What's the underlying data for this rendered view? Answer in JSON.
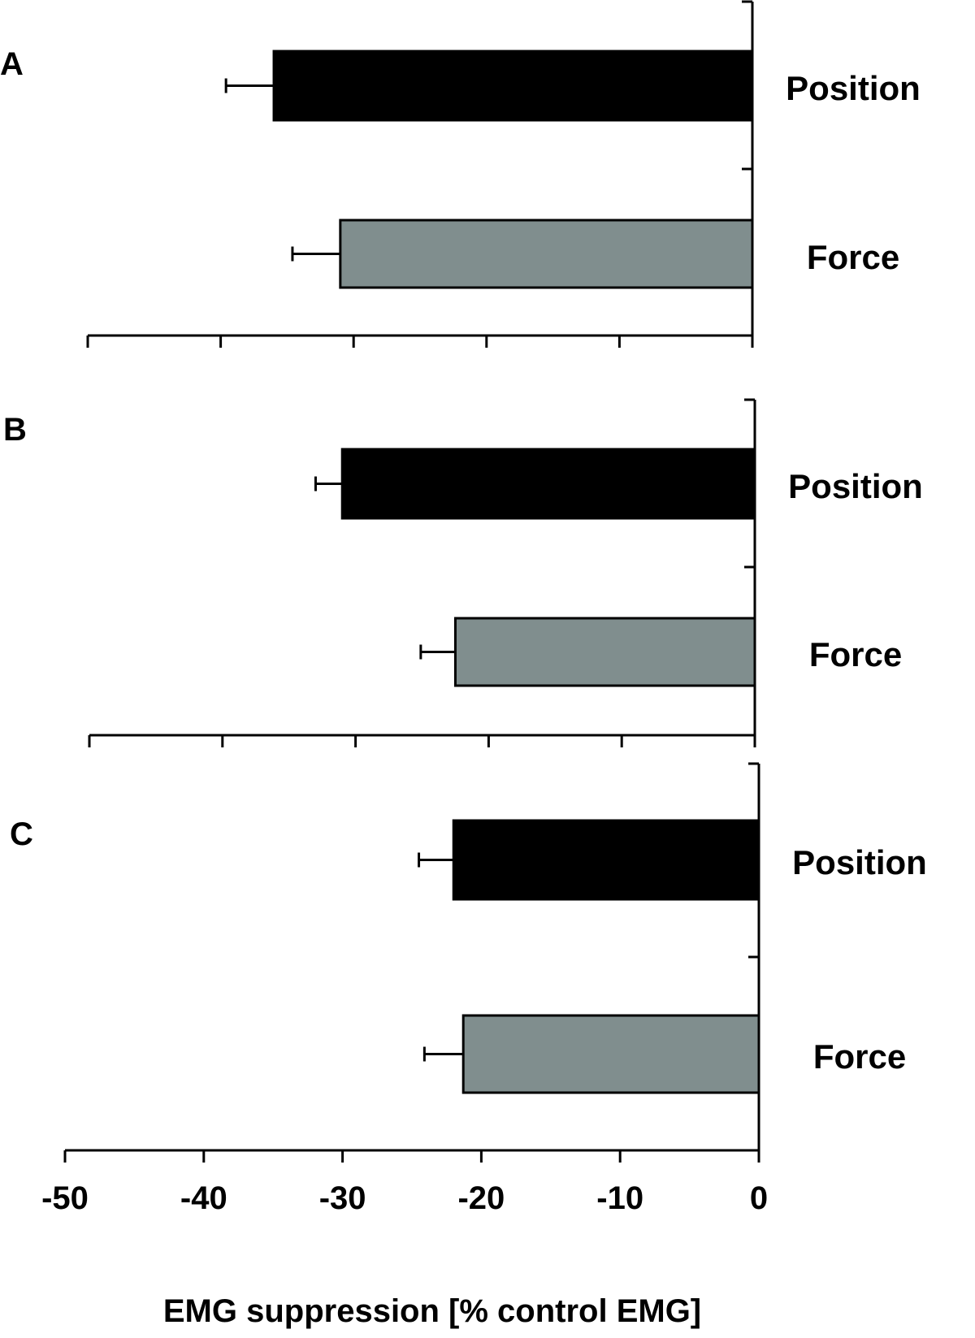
{
  "chart_data": [
    {
      "panel": "A",
      "type": "bar",
      "orientation": "horizontal",
      "categories": [
        "Position",
        "Force"
      ],
      "values": [
        -36,
        -31
      ],
      "errors": [
        3.6,
        3.6
      ],
      "colors": [
        "#000000",
        "#808e8e"
      ],
      "xlim": [
        -50,
        0
      ]
    },
    {
      "panel": "B",
      "type": "bar",
      "orientation": "horizontal",
      "categories": [
        "Position",
        "Force"
      ],
      "values": [
        -31,
        -22.5
      ],
      "errors": [
        2,
        2.6
      ],
      "colors": [
        "#000000",
        "#808e8e"
      ],
      "xlim": [
        -50,
        0
      ]
    },
    {
      "panel": "C",
      "type": "bar",
      "orientation": "horizontal",
      "categories": [
        "Position",
        "Force"
      ],
      "values": [
        -22,
        -21.3
      ],
      "errors": [
        2.5,
        2.8
      ],
      "colors": [
        "#000000",
        "#808e8e"
      ],
      "xlim": [
        -50,
        0
      ],
      "x_ticks": [
        "-50",
        "-40",
        "-30",
        "-20",
        "-10",
        "0"
      ],
      "xlabel": "EMG suppression [% control EMG]"
    }
  ]
}
